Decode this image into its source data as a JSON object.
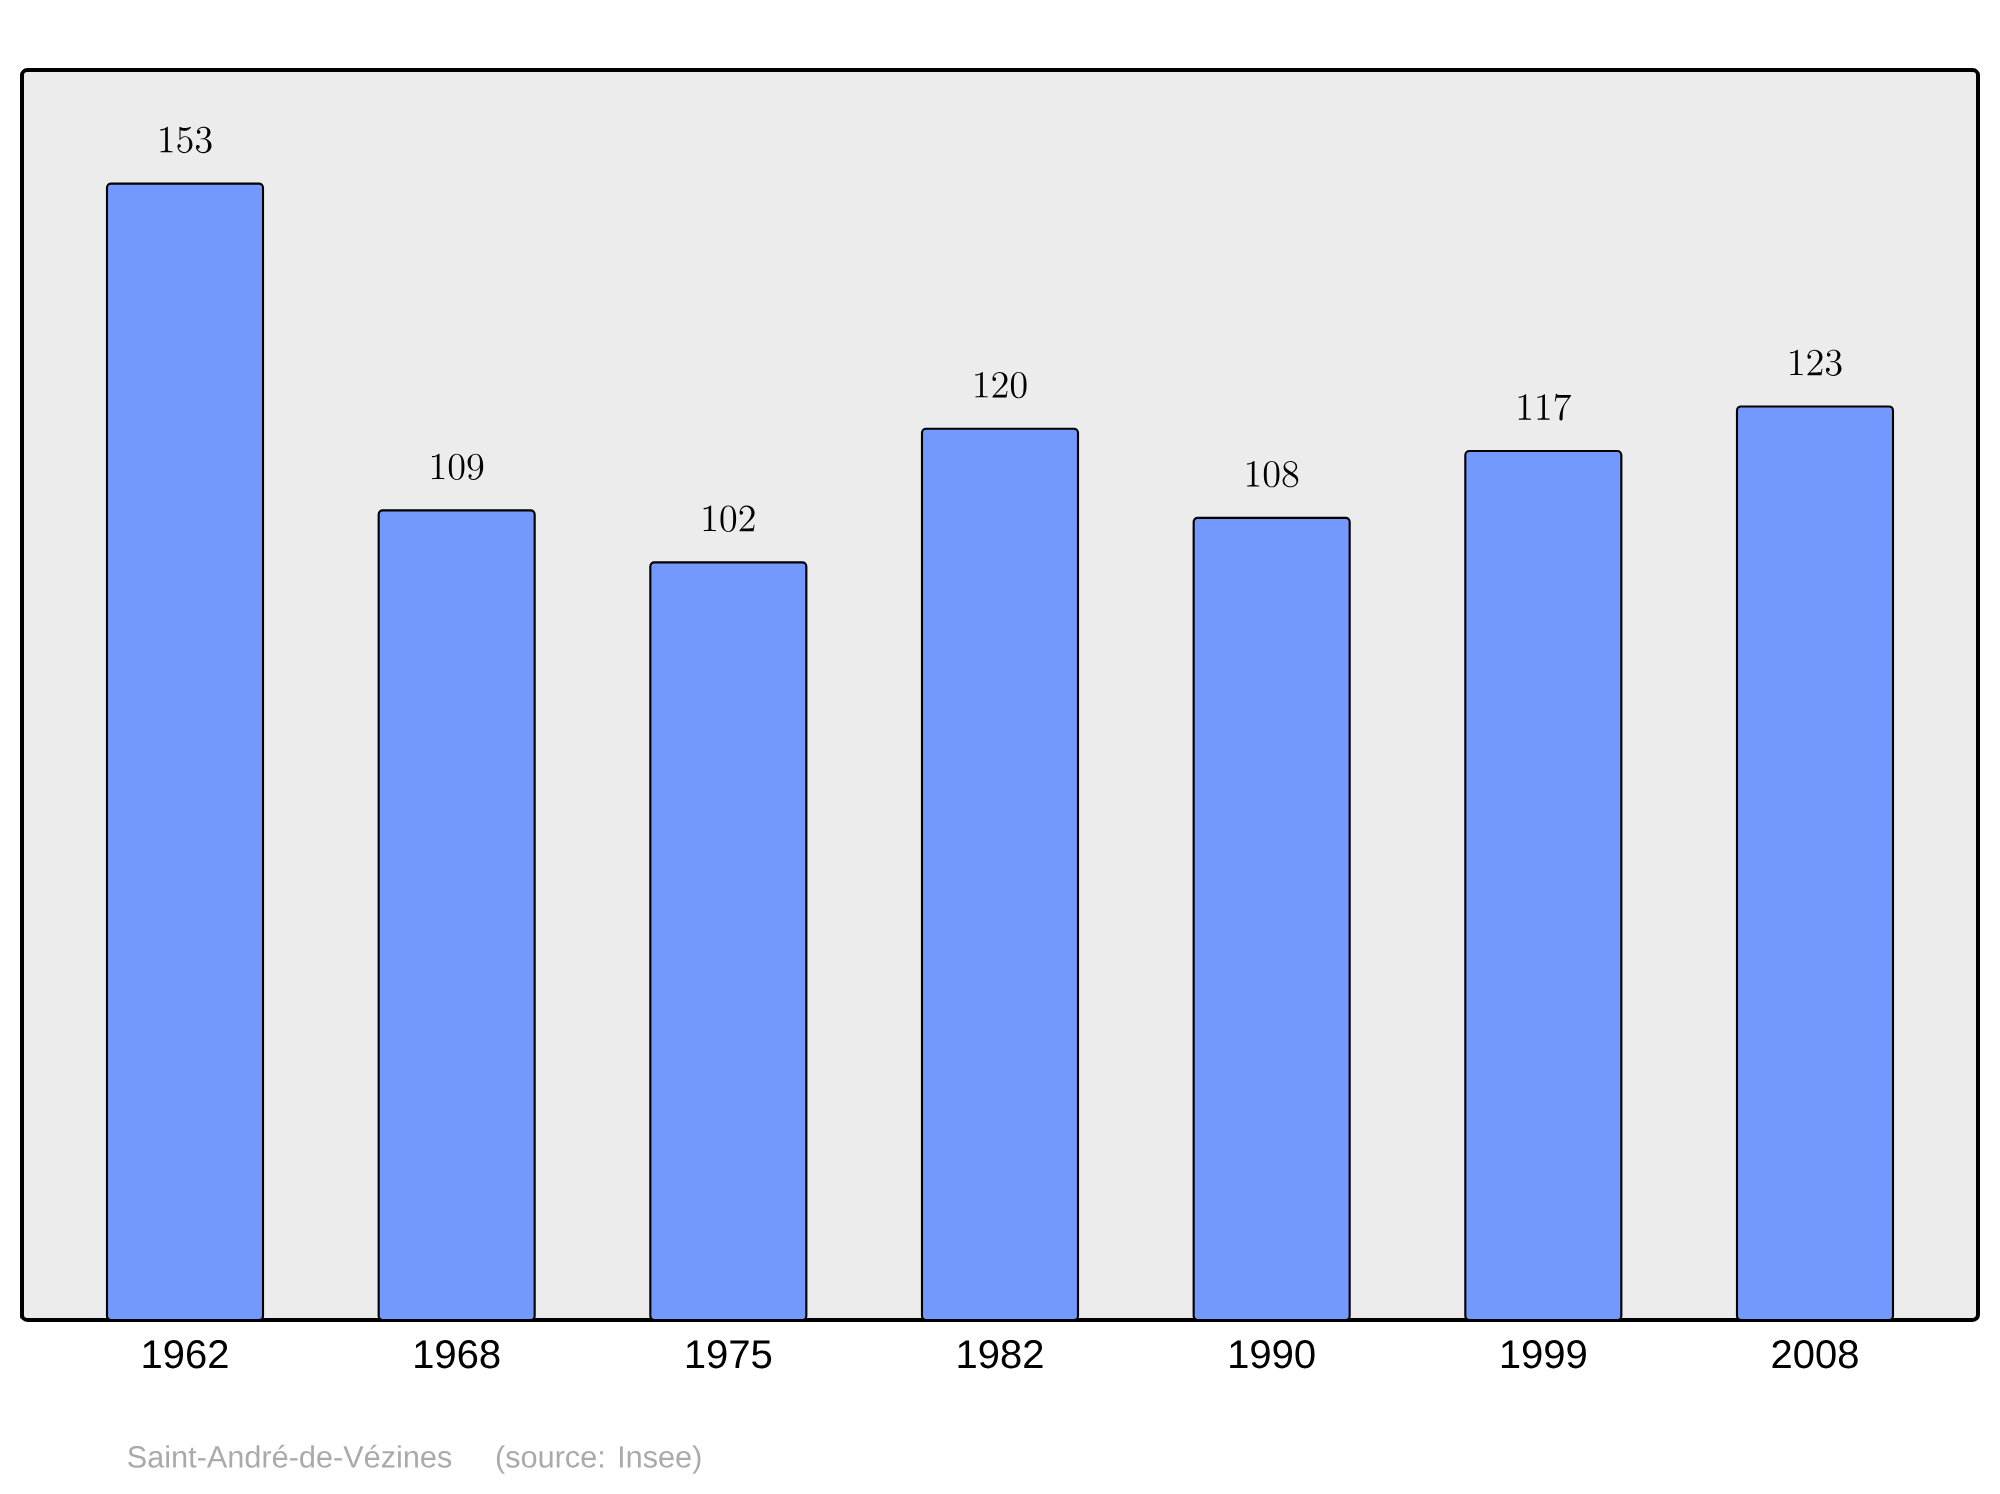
{
  "chart_data": {
    "type": "bar",
    "categories": [
      "1962",
      "1968",
      "1975",
      "1982",
      "1990",
      "1999",
      "2008"
    ],
    "values": [
      153,
      109,
      102,
      120,
      108,
      117,
      123
    ],
    "color": "#7399ff",
    "data_labels": true,
    "annotations": [
      "Saint-André-de-Vézines",
      "(source: Insee)"
    ]
  }
}
